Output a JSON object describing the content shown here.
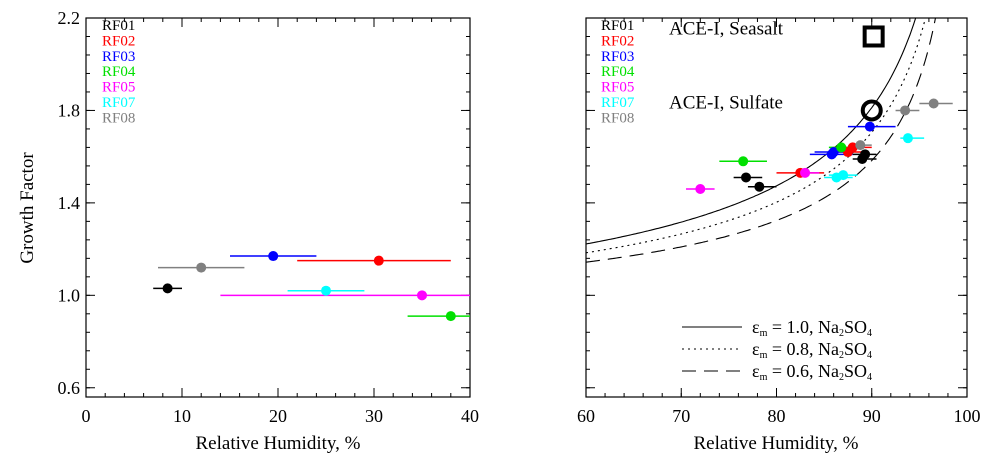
{
  "chart_data": [
    {
      "type": "scatter",
      "xlabel": "Relative Humidity, %",
      "ylabel": "Growth Factor",
      "xlim": [
        0,
        40
      ],
      "ylim": [
        0.56,
        2.2
      ],
      "xticks": [
        "0",
        "10",
        "20",
        "30",
        "40"
      ],
      "yticks": [
        "0.6",
        "1.0",
        "1.4",
        "1.8",
        "2.2"
      ],
      "xtick_values": [
        0,
        10,
        20,
        30,
        40
      ],
      "ytick_values": [
        0.6,
        1.0,
        1.4,
        1.8,
        2.2
      ],
      "grid": false,
      "legend_position": "top-left",
      "series": [
        {
          "name": "RF01",
          "color": "#000000",
          "points": [
            {
              "x": 8.5,
              "y": 1.03,
              "xerr": [
                7.0,
                10.0
              ]
            }
          ]
        },
        {
          "name": "RF02",
          "color": "#ff0000",
          "points": [
            {
              "x": 30.5,
              "y": 1.15,
              "xerr": [
                22.0,
                38.0
              ]
            }
          ]
        },
        {
          "name": "RF03",
          "color": "#0000ff",
          "points": [
            {
              "x": 19.5,
              "y": 1.17,
              "xerr": [
                15.0,
                24.0
              ]
            }
          ]
        },
        {
          "name": "RF04",
          "color": "#00e000",
          "points": [
            {
              "x": 38.0,
              "y": 0.91,
              "xerr": [
                33.5,
                40.0
              ]
            }
          ]
        },
        {
          "name": "RF05",
          "color": "#ff00ff",
          "points": [
            {
              "x": 35.0,
              "y": 1.0,
              "xerr": [
                14.0,
                40.0
              ]
            }
          ]
        },
        {
          "name": "RF07",
          "color": "#00ffff",
          "points": [
            {
              "x": 25.0,
              "y": 1.02,
              "xerr": [
                21.0,
                29.0
              ]
            }
          ]
        },
        {
          "name": "RF08",
          "color": "#808080",
          "points": [
            {
              "x": 12.0,
              "y": 1.12,
              "xerr": [
                7.5,
                16.5
              ]
            }
          ]
        }
      ]
    },
    {
      "type": "scatter",
      "xlabel": "Relative Humidity, %",
      "ylabel": "",
      "xlim": [
        60,
        100
      ],
      "ylim": [
        0.56,
        2.2
      ],
      "xticks": [
        "60",
        "70",
        "80",
        "90",
        "100"
      ],
      "xtick_values": [
        60,
        70,
        80,
        90,
        100
      ],
      "ytick_values": [
        0.6,
        1.0,
        1.4,
        1.8,
        2.2
      ],
      "grid": false,
      "legend_position": "top-left",
      "series": [
        {
          "name": "RF01",
          "color": "#000000",
          "points": [
            {
              "x": 76.8,
              "y": 1.51,
              "xerr": [
                75.5,
                78.5
              ]
            },
            {
              "x": 78.2,
              "y": 1.47,
              "xerr": [
                77.0,
                80.0
              ]
            },
            {
              "x": 89.0,
              "y": 1.59,
              "xerr": [
                88.0,
                90.5
              ]
            },
            {
              "x": 89.3,
              "y": 1.61,
              "xerr": [
                88.0,
                90.5
              ]
            }
          ]
        },
        {
          "name": "RF02",
          "color": "#ff0000",
          "points": [
            {
              "x": 82.5,
              "y": 1.53,
              "xerr": [
                80.0,
                85.0
              ]
            },
            {
              "x": 87.5,
              "y": 1.62,
              "xerr": [
                85.5,
                89.5
              ]
            },
            {
              "x": 88.0,
              "y": 1.64,
              "xerr": [
                86.0,
                90.0
              ]
            }
          ]
        },
        {
          "name": "RF03",
          "color": "#0000ff",
          "points": [
            {
              "x": 85.8,
              "y": 1.61,
              "xerr": [
                83.5,
                88.0
              ]
            },
            {
              "x": 86.0,
              "y": 1.62,
              "xerr": [
                84.0,
                88.0
              ]
            },
            {
              "x": 89.8,
              "y": 1.73,
              "xerr": [
                87.5,
                92.5
              ]
            }
          ]
        },
        {
          "name": "RF04",
          "color": "#00e000",
          "points": [
            {
              "x": 76.5,
              "y": 1.58,
              "xerr": [
                74.0,
                79.0
              ]
            },
            {
              "x": 86.8,
              "y": 1.64,
              "xerr": [
                85.5,
                88.0
              ]
            }
          ]
        },
        {
          "name": "RF05",
          "color": "#ff00ff",
          "points": [
            {
              "x": 72.0,
              "y": 1.46,
              "xerr": [
                70.5,
                73.5
              ]
            },
            {
              "x": 83.0,
              "y": 1.53,
              "xerr": [
                82.0,
                84.5
              ]
            }
          ]
        },
        {
          "name": "RF07",
          "color": "#00ffff",
          "points": [
            {
              "x": 86.3,
              "y": 1.51,
              "xerr": [
                85.0,
                88.0
              ]
            },
            {
              "x": 87.0,
              "y": 1.52,
              "xerr": [
                85.5,
                88.5
              ]
            },
            {
              "x": 93.8,
              "y": 1.68,
              "xerr": [
                93.0,
                95.5
              ]
            }
          ]
        },
        {
          "name": "RF08",
          "color": "#808080",
          "points": [
            {
              "x": 88.8,
              "y": 1.65,
              "xerr": [
                88.0,
                90.0
              ]
            },
            {
              "x": 93.5,
              "y": 1.8,
              "xerr": [
                92.5,
                95.0
              ]
            },
            {
              "x": 96.5,
              "y": 1.83,
              "xerr": [
                95.0,
                98.5
              ]
            }
          ]
        }
      ],
      "reference_points": [
        {
          "label": "ACE-I, Seasalt",
          "marker": "square",
          "x": 90.2,
          "y": 2.12
        },
        {
          "label": "ACE-I, Sulfate",
          "marker": "circle",
          "x": 90.0,
          "y": 1.8
        }
      ],
      "curves": [
        {
          "symbol": "ε",
          "subscript": "m",
          "label": " = 1.0, Na",
          "sub2": "2",
          "label2": "SO",
          "sub4": "4",
          "style": "solid",
          "epsilon": 1.0
        },
        {
          "symbol": "ε",
          "subscript": "m",
          "label": " = 0.8, Na",
          "sub2": "2",
          "label2": "SO",
          "sub4": "4",
          "style": "dotted",
          "epsilon": 0.8
        },
        {
          "symbol": "ε",
          "subscript": "m",
          "label": " = 0.6, Na",
          "sub2": "2",
          "label2": "SO",
          "sub4": "4",
          "style": "dashed",
          "epsilon": 0.6
        }
      ]
    }
  ]
}
